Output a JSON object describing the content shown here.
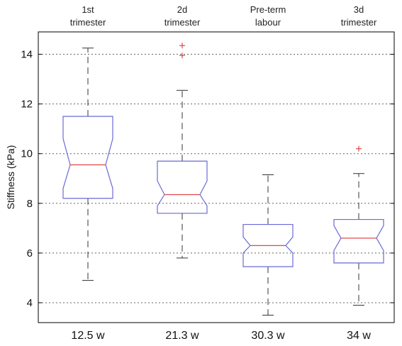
{
  "chart_data": {
    "type": "boxplot",
    "notched": true,
    "title": "",
    "xlabel": "",
    "ylabel": "Stiffness (kPa)",
    "ylim": [
      3.2,
      14.9
    ],
    "yticks": [
      4,
      6,
      8,
      10,
      12,
      14
    ],
    "grid": {
      "horizontal": true,
      "style": "dotted"
    },
    "categories": [
      {
        "top_label": [
          "1st",
          "trimester"
        ],
        "bottom_label": "12.5 w"
      },
      {
        "top_label": [
          "2d",
          "trimester"
        ],
        "bottom_label": "21.3 w"
      },
      {
        "top_label": [
          "Pre-term",
          "labour"
        ],
        "bottom_label": "30.3 w"
      },
      {
        "top_label": [
          "3d",
          "trimester"
        ],
        "bottom_label": "34 w"
      }
    ],
    "boxes": [
      {
        "whisker_low": 4.9,
        "q1": 8.2,
        "median": 9.55,
        "q3": 11.5,
        "whisker_high": 14.25,
        "notch_low": 8.6,
        "notch_high": 10.6,
        "outliers": []
      },
      {
        "whisker_low": 5.8,
        "q1": 7.6,
        "median": 8.35,
        "q3": 9.7,
        "whisker_high": 12.55,
        "notch_low": 7.9,
        "notch_high": 8.9,
        "outliers": [
          13.95,
          14.35
        ]
      },
      {
        "whisker_low": 3.5,
        "q1": 5.45,
        "median": 6.3,
        "q3": 7.15,
        "whisker_high": 9.15,
        "notch_low": 6.0,
        "notch_high": 6.65,
        "outliers": []
      },
      {
        "whisker_low": 3.9,
        "q1": 5.6,
        "median": 6.6,
        "q3": 7.35,
        "whisker_high": 9.2,
        "notch_low": 6.1,
        "notch_high": 7.1,
        "outliers": [
          10.2
        ]
      }
    ],
    "colors": {
      "box": "#6a6ad8",
      "median": "#e04848",
      "whisker": "#333333",
      "outlier": "#e04848",
      "grid": "#666666"
    }
  }
}
